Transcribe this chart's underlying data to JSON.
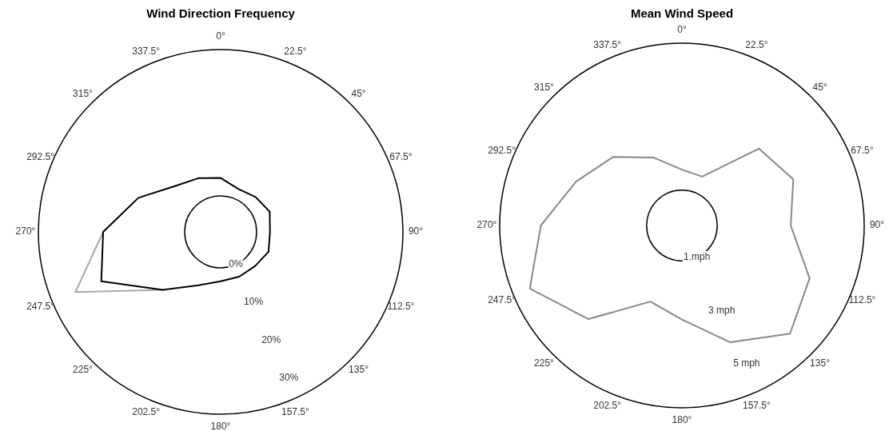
{
  "chart_data": [
    {
      "type": "radar",
      "title": "Wind Direction Frequency",
      "categories": [
        "0°",
        "22.5°",
        "45°",
        "67.5°",
        "90°",
        "112.5°",
        "135°",
        "157.5°",
        "180°",
        "202.5°",
        "225°",
        "247.5°",
        "270°",
        "292.5°",
        "315°",
        "337.5°"
      ],
      "series": [
        {
          "color": "#aaaaaa",
          "values": [
            null,
            null,
            null,
            null,
            null,
            null,
            null,
            null,
            null,
            null,
            11,
            29,
            19.5,
            null,
            null,
            null
          ]
        },
        {
          "color": "#000000",
          "values": [
            4.3,
            2.5,
            3.2,
            4.1,
            3.2,
            3.8,
            3.0,
            3.0,
            3.2,
            5.2,
            11,
            22.3,
            19.5,
            12.7,
            6.9,
            5.3
          ]
        }
      ],
      "ylim": [
        -8.6,
        35
      ],
      "yticks": [
        {
          "value": 0,
          "label": "0%"
        },
        {
          "value": 10,
          "label": "10%"
        },
        {
          "value": 20,
          "label": "20%"
        },
        {
          "value": 30,
          "label": "30%"
        }
      ]
    },
    {
      "type": "radar",
      "title": "Mean Wind Speed",
      "categories": [
        "0°",
        "22.5°",
        "45°",
        "67.5°",
        "90°",
        "112.5°",
        "135°",
        "157.5°",
        "180°",
        "202.5°",
        "225°",
        "247.5°",
        "270°",
        "292.5°",
        "315°",
        "337.5°"
      ],
      "series": [
        {
          "color": "#888888",
          "values": [
            1.7,
            1.6,
            3.5,
            3.9,
            3.5,
            4.5,
            5.0,
            4.1,
            3.0,
            2.6,
            4.3,
            5.4,
            4.6,
            3.7,
            3.1,
            2.3
          ]
        }
      ],
      "ylim": [
        -0.2,
        6
      ],
      "yticks": [
        {
          "value": 1,
          "label": "1 mph"
        },
        {
          "value": 3,
          "label": "3 mph"
        },
        {
          "value": 5,
          "label": "5 mph"
        }
      ]
    }
  ]
}
